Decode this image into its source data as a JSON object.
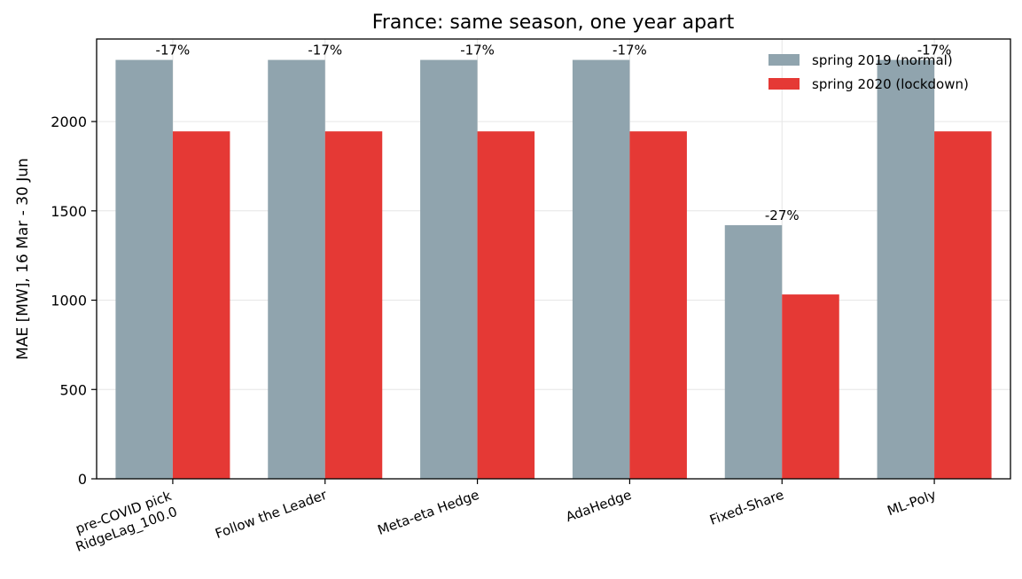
{
  "chart_data": {
    "type": "bar",
    "title": "France: same season, one year apart",
    "xlabel": "",
    "ylabel": "MAE [MW], 16 Mar - 30 Jun",
    "categories": [
      [
        "pre-COVID pick",
        "RidgeLag_100.0"
      ],
      [
        "Follow the Leader"
      ],
      [
        "Meta-eta Hedge"
      ],
      [
        "AdaHedge"
      ],
      [
        "Fixed-Share"
      ],
      [
        "ML-Poly"
      ]
    ],
    "series": [
      {
        "name": "spring 2019 (normal)",
        "color": "#90a4ae",
        "values": [
          2345,
          2345,
          2345,
          2345,
          1420,
          2345
        ]
      },
      {
        "name": "spring 2020 (lockdown)",
        "color": "#e53935",
        "values": [
          1945,
          1945,
          1945,
          1945,
          1032,
          1945
        ]
      }
    ],
    "annotations": [
      "-17%",
      "-17%",
      "-17%",
      "-17%",
      "-27%",
      "-17%"
    ],
    "ylim": [
      0,
      2462
    ],
    "yticks": [
      0,
      500,
      1000,
      1500,
      2000
    ],
    "grid": true,
    "legend_position": "top-right"
  }
}
